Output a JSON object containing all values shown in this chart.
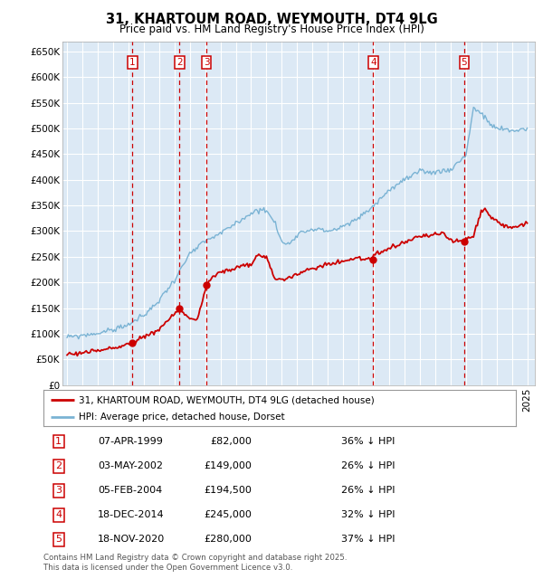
{
  "title_line1": "31, KHARTOUM ROAD, WEYMOUTH, DT4 9LG",
  "title_line2": "Price paid vs. HM Land Registry's House Price Index (HPI)",
  "background_color": "#dce9f5",
  "outer_bg_color": "#ffffff",
  "grid_color": "#ffffff",
  "red_line_color": "#cc0000",
  "blue_line_color": "#7ab3d4",
  "legend_label_red": "31, KHARTOUM ROAD, WEYMOUTH, DT4 9LG (detached house)",
  "legend_label_blue": "HPI: Average price, detached house, Dorset",
  "transactions": [
    {
      "num": 1,
      "date_x": 1999.27,
      "price": 82000
    },
    {
      "num": 2,
      "date_x": 2002.34,
      "price": 149000
    },
    {
      "num": 3,
      "date_x": 2004.1,
      "price": 194500
    },
    {
      "num": 4,
      "date_x": 2014.96,
      "price": 245000
    },
    {
      "num": 5,
      "date_x": 2020.88,
      "price": 280000
    }
  ],
  "table_rows": [
    [
      "1",
      "07-APR-1999",
      "£82,000",
      "36% ↓ HPI"
    ],
    [
      "2",
      "03-MAY-2002",
      "£149,000",
      "26% ↓ HPI"
    ],
    [
      "3",
      "05-FEB-2004",
      "£194,500",
      "26% ↓ HPI"
    ],
    [
      "4",
      "18-DEC-2014",
      "£245,000",
      "32% ↓ HPI"
    ],
    [
      "5",
      "18-NOV-2020",
      "£280,000",
      "37% ↓ HPI"
    ]
  ],
  "footer": "Contains HM Land Registry data © Crown copyright and database right 2025.\nThis data is licensed under the Open Government Licence v3.0.",
  "ylim": [
    0,
    670000
  ],
  "xlim_start": 1994.7,
  "xlim_end": 2025.5,
  "yticks": [
    0,
    50000,
    100000,
    150000,
    200000,
    250000,
    300000,
    350000,
    400000,
    450000,
    500000,
    550000,
    600000,
    650000
  ],
  "ytick_labels": [
    "£0",
    "£50K",
    "£100K",
    "£150K",
    "£200K",
    "£250K",
    "£300K",
    "£350K",
    "£400K",
    "£450K",
    "£500K",
    "£550K",
    "£600K",
    "£650K"
  ],
  "hpi_knots": [
    [
      1995.0,
      93000
    ],
    [
      1996.0,
      97000
    ],
    [
      1997.0,
      101000
    ],
    [
      1998.0,
      108000
    ],
    [
      1999.0,
      118000
    ],
    [
      2000.0,
      135000
    ],
    [
      2001.0,
      165000
    ],
    [
      2002.0,
      205000
    ],
    [
      2003.0,
      255000
    ],
    [
      2004.0,
      280000
    ],
    [
      2005.0,
      295000
    ],
    [
      2006.0,
      315000
    ],
    [
      2007.0,
      335000
    ],
    [
      2007.8,
      345000
    ],
    [
      2008.5,
      320000
    ],
    [
      2009.0,
      278000
    ],
    [
      2009.5,
      275000
    ],
    [
      2010.0,
      295000
    ],
    [
      2011.0,
      305000
    ],
    [
      2012.0,
      300000
    ],
    [
      2013.0,
      308000
    ],
    [
      2014.0,
      325000
    ],
    [
      2015.0,
      350000
    ],
    [
      2016.0,
      380000
    ],
    [
      2017.0,
      400000
    ],
    [
      2018.0,
      415000
    ],
    [
      2019.0,
      415000
    ],
    [
      2020.0,
      420000
    ],
    [
      2021.0,
      448000
    ],
    [
      2021.5,
      540000
    ],
    [
      2022.0,
      530000
    ],
    [
      2022.5,
      510000
    ],
    [
      2023.0,
      500000
    ],
    [
      2024.0,
      495000
    ],
    [
      2025.0,
      500000
    ]
  ],
  "red_knots": [
    [
      1995.0,
      60000
    ],
    [
      1996.0,
      63000
    ],
    [
      1997.0,
      67000
    ],
    [
      1998.0,
      72000
    ],
    [
      1999.27,
      82000
    ],
    [
      2000.0,
      95000
    ],
    [
      2001.0,
      108000
    ],
    [
      2002.34,
      149000
    ],
    [
      2003.0,
      130000
    ],
    [
      2003.5,
      128000
    ],
    [
      2004.1,
      194500
    ],
    [
      2004.5,
      210000
    ],
    [
      2005.0,
      220000
    ],
    [
      2006.0,
      228000
    ],
    [
      2007.0,
      235000
    ],
    [
      2007.5,
      255000
    ],
    [
      2008.0,
      248000
    ],
    [
      2008.5,
      210000
    ],
    [
      2009.0,
      205000
    ],
    [
      2010.0,
      215000
    ],
    [
      2011.0,
      228000
    ],
    [
      2012.0,
      235000
    ],
    [
      2013.0,
      242000
    ],
    [
      2014.0,
      248000
    ],
    [
      2014.96,
      245000
    ],
    [
      2015.0,
      252000
    ],
    [
      2016.0,
      265000
    ],
    [
      2017.0,
      278000
    ],
    [
      2018.0,
      290000
    ],
    [
      2019.0,
      293000
    ],
    [
      2019.5,
      295000
    ],
    [
      2020.0,
      282000
    ],
    [
      2020.88,
      280000
    ],
    [
      2021.0,
      285000
    ],
    [
      2021.5,
      290000
    ],
    [
      2022.0,
      340000
    ],
    [
      2022.3,
      345000
    ],
    [
      2022.5,
      330000
    ],
    [
      2023.0,
      320000
    ],
    [
      2023.5,
      310000
    ],
    [
      2024.0,
      308000
    ],
    [
      2025.0,
      315000
    ]
  ]
}
